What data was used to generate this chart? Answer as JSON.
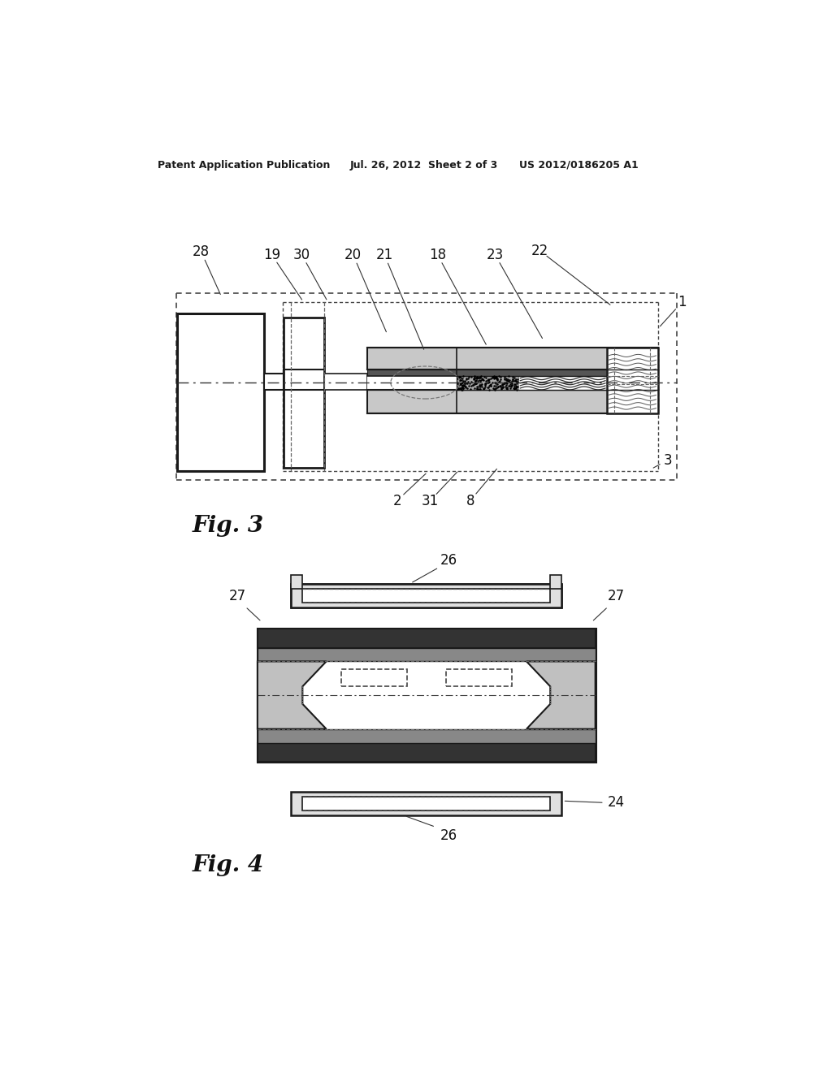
{
  "bg_color": "#ffffff",
  "header_left": "Patent Application Publication",
  "header_mid": "Jul. 26, 2012  Sheet 2 of 3",
  "header_right": "US 2012/0186205 A1",
  "fig3_label": "Fig. 3",
  "fig4_label": "Fig. 4",
  "lc": "#1a1a1a"
}
